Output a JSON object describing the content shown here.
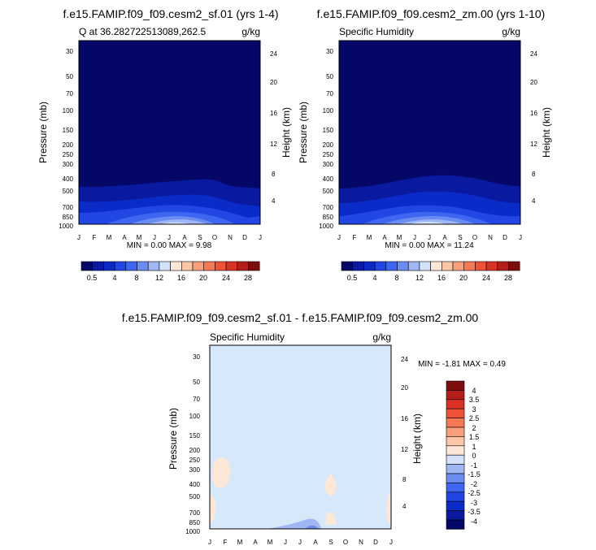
{
  "panels": [
    {
      "title": "f.e15.FAMIP.f09_f09.cesm2_sf.01 (yrs 1-4)",
      "left_label": "Q at 36.282722513089,262.5",
      "right_label": "g/kg",
      "ylabel": "Pressure (mb)",
      "ylabel_right": "Height (km)",
      "minmax": "MIN =   0.00 MAX =   9.98"
    },
    {
      "title": "f.e15.FAMIP.f09_f09.cesm2_zm.00 (yrs 1-10)",
      "left_label": "Specific Humidity",
      "right_label": "g/kg",
      "ylabel": "Pressure (mb)",
      "ylabel_right": "Height (km)",
      "minmax": "MIN =   0.00 MAX =  11.24"
    },
    {
      "title": "f.e15.FAMIP.f09_f09.cesm2_sf.01 - f.e15.FAMIP.f09_f09.cesm2_zm.00",
      "left_label": "Specific Humidity",
      "right_label": "g/kg",
      "ylabel": "Pressure (mb)",
      "ylabel_right": "Height (km)",
      "minmax": "MIN =  -1.81 MAX =   0.49"
    }
  ],
  "colorbar_top": {
    "labels": [
      "0.5",
      "4",
      "8",
      "12",
      "16",
      "20",
      "24",
      "28"
    ],
    "colors": [
      "#040766",
      "#0a1aa0",
      "#0b2bc8",
      "#2146e4",
      "#3f66f0",
      "#6b8df2",
      "#9fb7f5",
      "#d3e2fa",
      "#fde7d6",
      "#fbc7a8",
      "#f9a07a",
      "#f57954",
      "#ef5236",
      "#d93225",
      "#b31e1a",
      "#7d0d0d"
    ]
  },
  "colorbar_diff": {
    "labels": [
      "4",
      "3.5",
      "3",
      "2.5",
      "2",
      "1.5",
      "1",
      "0",
      "-1",
      "-1.5",
      "-2",
      "-2.5",
      "-3",
      "-3.5",
      "-4"
    ],
    "colors": [
      "#7d0d0d",
      "#b31e1a",
      "#d93225",
      "#ef5236",
      "#f57954",
      "#f9a07a",
      "#fbc7a8",
      "#fde7d6",
      "#d3e2fa",
      "#9fb7f5",
      "#6b8df2",
      "#3f66f0",
      "#2146e4",
      "#0b2bc8",
      "#0a1aa0",
      "#040766"
    ]
  },
  "chart_data": [
    {
      "type": "heatmap",
      "title": "f.e15.FAMIP.f09_f09.cesm2_sf.01 (yrs 1-4)",
      "xlabel": "",
      "ylabel": "Pressure (mb)",
      "ylabel_right": "Height (km)",
      "x_ticks": [
        "J",
        "F",
        "M",
        "A",
        "M",
        "J",
        "J",
        "A",
        "S",
        "O",
        "N",
        "D",
        "J"
      ],
      "y_ticks": [
        30,
        50,
        70,
        100,
        150,
        200,
        250,
        300,
        400,
        500,
        700,
        850,
        1000
      ],
      "y_tick_labels": [
        "30",
        "50",
        "70",
        "100",
        "150",
        "200",
        "250",
        "300",
        "400",
        "500",
        "700",
        "850",
        "1000"
      ],
      "y_right_ticks": [
        4,
        8,
        12,
        16,
        20,
        24
      ],
      "y_log": true,
      "y_inverted": true,
      "ylim": [
        1000,
        25
      ],
      "min": 0.0,
      "max": 9.98,
      "contour_levels": [
        0.5,
        4,
        8,
        12,
        16,
        20,
        24,
        28
      ]
    },
    {
      "type": "heatmap",
      "title": "f.e15.FAMIP.f09_f09.cesm2_zm.00 (yrs 1-10)",
      "xlabel": "",
      "ylabel": "Pressure (mb)",
      "ylabel_right": "Height (km)",
      "x_ticks": [
        "J",
        "F",
        "M",
        "A",
        "M",
        "J",
        "J",
        "A",
        "S",
        "O",
        "N",
        "D",
        "J"
      ],
      "y_ticks": [
        30,
        50,
        70,
        100,
        150,
        200,
        250,
        300,
        400,
        500,
        700,
        850,
        1000
      ],
      "y_tick_labels": [
        "30",
        "50",
        "70",
        "100",
        "150",
        "200",
        "250",
        "300",
        "400",
        "500",
        "700",
        "850",
        "1000"
      ],
      "y_right_ticks": [
        4,
        8,
        12,
        16,
        20,
        24
      ],
      "y_log": true,
      "y_inverted": true,
      "ylim": [
        1000,
        25
      ],
      "min": 0.0,
      "max": 11.24,
      "contour_levels": [
        0.5,
        4,
        8,
        12,
        16,
        20,
        24,
        28
      ]
    },
    {
      "type": "heatmap",
      "title": "f.e15.FAMIP.f09_f09.cesm2_sf.01 - f.e15.FAMIP.f09_f09.cesm2_zm.00",
      "xlabel": "",
      "ylabel": "Pressure (mb)",
      "ylabel_right": "Height (km)",
      "x_ticks": [
        "J",
        "F",
        "M",
        "A",
        "M",
        "J",
        "J",
        "A",
        "S",
        "O",
        "N",
        "D",
        "J"
      ],
      "y_ticks": [
        30,
        50,
        70,
        100,
        150,
        200,
        250,
        300,
        400,
        500,
        700,
        850,
        1000
      ],
      "y_tick_labels": [
        "30",
        "50",
        "70",
        "100",
        "150",
        "200",
        "250",
        "300",
        "400",
        "500",
        "700",
        "850",
        "1000"
      ],
      "y_right_ticks": [
        4,
        8,
        12,
        16,
        20,
        24
      ],
      "y_log": true,
      "y_inverted": true,
      "ylim": [
        1000,
        25
      ],
      "min": -1.81,
      "max": 0.49,
      "contour_levels": [
        -4,
        -3.5,
        -3,
        -2.5,
        -2,
        -1.5,
        -1,
        0,
        1,
        1.5,
        2,
        2.5,
        3,
        3.5,
        4
      ]
    }
  ]
}
